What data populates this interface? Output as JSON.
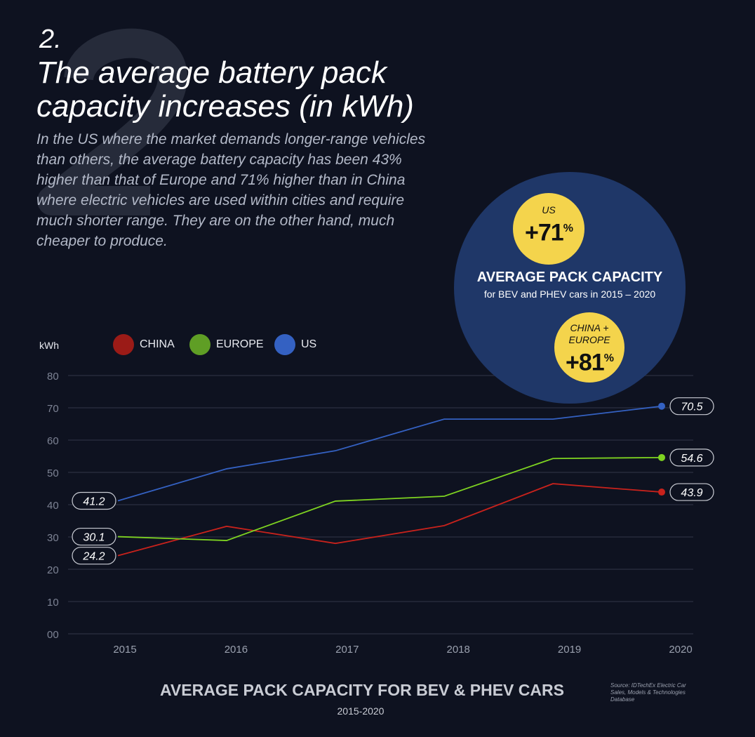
{
  "header": {
    "watermark": "2",
    "number": "2.",
    "title_lines": [
      "The average battery pack",
      "capacity increases (in kWh)"
    ],
    "description_lines": [
      "In the US where the market demands longer-range vehicles",
      "than others, the average battery capacity has been 43%",
      "higher than that of Europe and 71% higher than in China",
      "where electric vehicles are used within cities and require",
      "much shorter range. They are on the other hand, much",
      "cheaper to produce."
    ]
  },
  "callout": {
    "title": "AVERAGE PACK CAPACITY",
    "subtitle": "for BEV and PHEV cars in 2015 – 2020",
    "us": {
      "label": "US",
      "value": "+71",
      "unit": "%"
    },
    "ce": {
      "label_lines": [
        "CHINA +",
        "EUROPE"
      ],
      "value": "+81",
      "unit": "%"
    },
    "colors": {
      "circle": "#1f3768",
      "badge": "#f4d44c"
    }
  },
  "chart_data": {
    "type": "line",
    "ylabel": "kWh",
    "ylim": [
      0,
      80
    ],
    "yticks": [
      "00",
      "10",
      "20",
      "30",
      "40",
      "50",
      "60",
      "70",
      "80"
    ],
    "categories": [
      "2015",
      "2016",
      "2017",
      "2018",
      "2019",
      "2020"
    ],
    "grid": true,
    "legend_placement": "top-left",
    "series": [
      {
        "name": "CHINA",
        "color": "#c8221c",
        "legend_color": "#9b1b17",
        "values": [
          24.2,
          33.3,
          28.0,
          33.5,
          46.5,
          43.9
        ],
        "start_label": "24.2",
        "end_label": "43.9"
      },
      {
        "name": "EUROPE",
        "color": "#7ed321",
        "legend_color": "#5f9e25",
        "values": [
          30.1,
          28.9,
          41.1,
          42.6,
          54.3,
          54.6
        ],
        "start_label": "30.1",
        "end_label": "54.6"
      },
      {
        "name": "US",
        "color": "#3461c2",
        "legend_color": "#3461c2",
        "values": [
          41.2,
          51.1,
          56.7,
          66.5,
          66.5,
          70.5
        ],
        "start_label": "41.2",
        "end_label": "70.5"
      }
    ],
    "title": "AVERAGE PACK CAPACITY FOR BEV & PHEV CARS",
    "subtitle": "2015-2020"
  },
  "source": "Source: IDTechEx Electric Car Sales, Models & Technologies Database"
}
